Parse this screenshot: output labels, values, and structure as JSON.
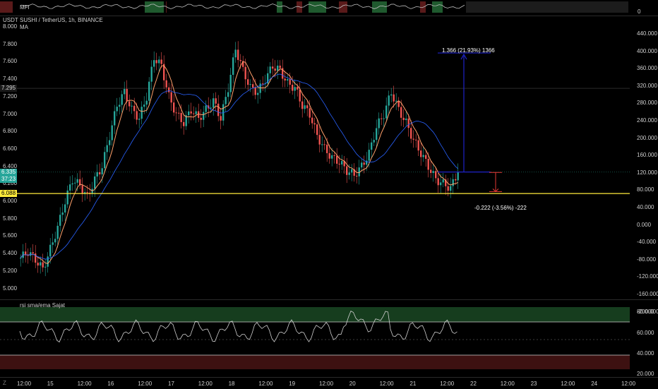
{
  "mfi": {
    "label": "MFI",
    "scale_zero": "0"
  },
  "chart": {
    "currency_label": "USDT",
    "symbol_title": "SUSHI / TetherUS, 1h, BINANCE",
    "ma_label": "MA",
    "current_price": "6.335",
    "countdown": "37:23",
    "marked_price_upper": "7.295",
    "support_price": "6.088",
    "measure_up_label": "1.366 (21.93%) 1366",
    "measure_down_label": "-0.222 (-3.56%) -222",
    "colors": {
      "up": "#26a69a",
      "down": "#ef5350",
      "ma": "#ffa06b",
      "ema": "#2962ff",
      "support": "#ffeb3b",
      "measure": "#1e22c8",
      "measure_down": "#e53935"
    }
  },
  "left_axis_ticks": [
    "8.000",
    "7.800",
    "7.600",
    "7.400",
    "7.200",
    "7.000",
    "6.800",
    "6.600",
    "6.400",
    "6.200",
    "6.000",
    "5.800",
    "5.600",
    "5.400",
    "5.200",
    "5.000"
  ],
  "right_axis_ticks": [
    "440.000",
    "400.000",
    "360.000",
    "320.000",
    "280.000",
    "240.000",
    "200.000",
    "160.000",
    "120.000",
    "80.000",
    "40.000",
    "0.000",
    "-40.000",
    "-80.000",
    "-120.000",
    "-160.000",
    "-200.000"
  ],
  "rsi": {
    "label": "rsi sma/ema Sajat",
    "ticks": [
      "80.000",
      "60.000",
      "40.000",
      "20.000"
    ]
  },
  "time_axis": [
    "12:00",
    "15",
    "12:00",
    "16",
    "12:00",
    "17",
    "12:00",
    "18",
    "12:00",
    "19",
    "12:00",
    "20",
    "12:00",
    "21",
    "12:00",
    "22",
    "12:00",
    "23",
    "12:00",
    "24",
    "12:00"
  ],
  "chart_data": {
    "type": "candlestick",
    "symbol": "SUSHI / TetherUS",
    "interval": "1h",
    "exchange": "BINANCE",
    "ylim": [
      4.9,
      8.05
    ],
    "support": 6.088,
    "last": 6.335,
    "path_points": [
      [
        0,
        5.35
      ],
      [
        3,
        5.42
      ],
      [
        6,
        5.33
      ],
      [
        9,
        5.22
      ],
      [
        12,
        5.45
      ],
      [
        15,
        5.7
      ],
      [
        18,
        6.0
      ],
      [
        21,
        6.25
      ],
      [
        24,
        6.18
      ],
      [
        27,
        6.05
      ],
      [
        30,
        6.25
      ],
      [
        33,
        6.4
      ],
      [
        36,
        6.75
      ],
      [
        39,
        7.1
      ],
      [
        42,
        7.25
      ],
      [
        45,
        7.05
      ],
      [
        48,
        6.95
      ],
      [
        51,
        7.2
      ],
      [
        54,
        7.65
      ],
      [
        57,
        7.55
      ],
      [
        60,
        7.2
      ],
      [
        63,
        7.0
      ],
      [
        66,
        6.9
      ],
      [
        69,
        7.05
      ],
      [
        72,
        6.95
      ],
      [
        75,
        7.05
      ],
      [
        78,
        7.15
      ],
      [
        81,
        6.95
      ],
      [
        84,
        7.3
      ],
      [
        87,
        7.75
      ],
      [
        90,
        7.5
      ],
      [
        93,
        7.3
      ],
      [
        96,
        7.25
      ],
      [
        99,
        7.4
      ],
      [
        102,
        7.55
      ],
      [
        105,
        7.5
      ],
      [
        108,
        7.35
      ],
      [
        111,
        7.3
      ],
      [
        114,
        7.1
      ],
      [
        117,
        7.0
      ],
      [
        120,
        6.75
      ],
      [
        123,
        6.6
      ],
      [
        126,
        6.5
      ],
      [
        129,
        6.45
      ],
      [
        132,
        6.35
      ],
      [
        135,
        6.3
      ],
      [
        138,
        6.4
      ],
      [
        141,
        6.55
      ],
      [
        144,
        6.85
      ],
      [
        147,
        7.0
      ],
      [
        150,
        7.25
      ],
      [
        153,
        7.05
      ],
      [
        156,
        6.9
      ],
      [
        159,
        6.7
      ],
      [
        162,
        6.55
      ],
      [
        165,
        6.4
      ],
      [
        168,
        6.25
      ],
      [
        171,
        6.2
      ],
      [
        174,
        6.15
      ],
      [
        177,
        6.335
      ]
    ]
  }
}
